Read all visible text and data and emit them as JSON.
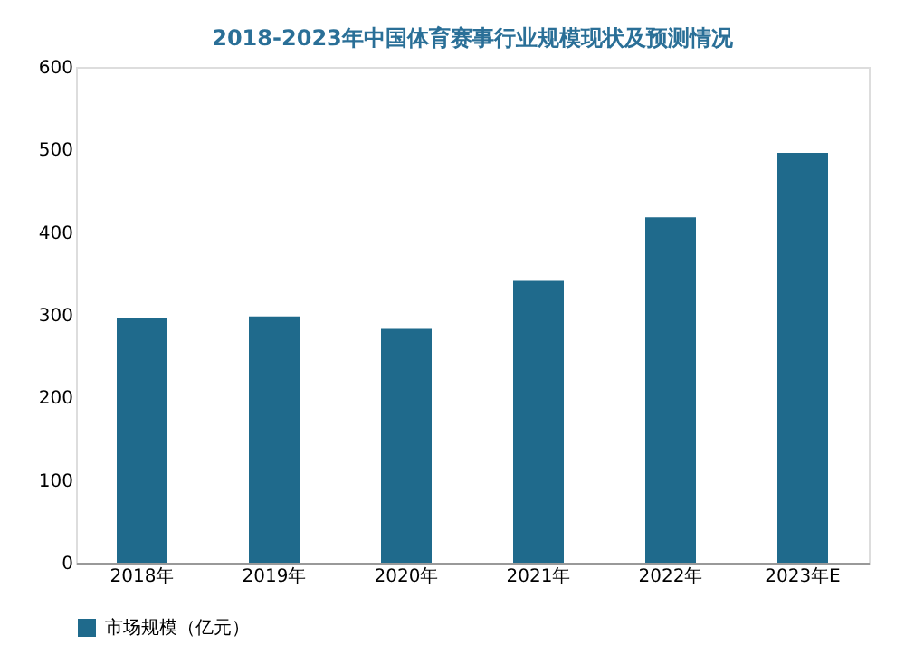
{
  "chart_data": {
    "type": "bar",
    "title": "2018-2023年中国体育赛事行业规模现状及预测情况",
    "categories": [
      "2018年",
      "2019年",
      "2020年",
      "2021年",
      "2022年",
      "2023年E"
    ],
    "series": [
      {
        "name": "市场规模（亿元）",
        "color": "#1f6a8c",
        "values": [
          296,
          298,
          283,
          341,
          418,
          496
        ]
      }
    ],
    "ylim": [
      0,
      600
    ],
    "yticks": [
      0,
      100,
      200,
      300,
      400,
      500,
      600
    ],
    "grid": false,
    "legend": "bottom"
  }
}
